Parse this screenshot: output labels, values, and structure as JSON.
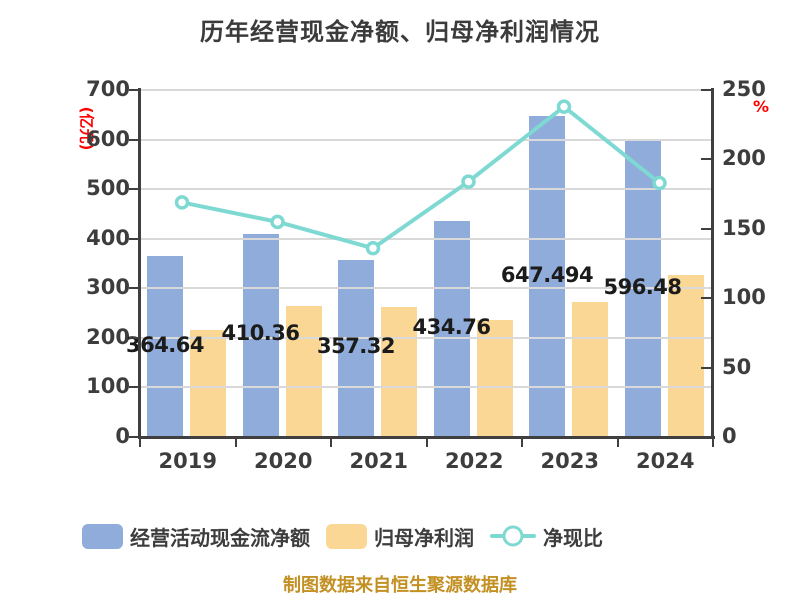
{
  "title": "历年经营现金净额、归母净利润情况",
  "source_note": "制图数据来自恒生聚源数据库",
  "colors": {
    "cash_bar": "#8FACDB",
    "profit_bar": "#FAD794",
    "ratio_line": "#7FD9D3",
    "marker_fill": "#FFFFFF",
    "axis": "#3F3F3F",
    "grid": "#D9D9D9",
    "title_text": "#3B3B3B",
    "bar_label_text": "#1B1B1B",
    "axis_unit_text": "#FF0000",
    "source_note_text": "#C39023"
  },
  "chart_data": {
    "type": "combo",
    "categories": [
      "2019",
      "2020",
      "2021",
      "2022",
      "2023",
      "2024"
    ],
    "series": [
      {
        "name": "经营活动现金流净额",
        "type": "bar",
        "axis": "left",
        "color": "#8FACDB",
        "values": [
          364.64,
          410.36,
          357.32,
          434.76,
          647.494,
          596.48
        ],
        "labels": [
          "364.64",
          "410.36",
          "357.32",
          "434.76",
          "647.494",
          "596.48"
        ]
      },
      {
        "name": "归母净利润",
        "type": "bar",
        "axis": "left",
        "color": "#FAD794",
        "values": [
          215,
          265,
          263,
          236,
          272,
          326
        ]
      },
      {
        "name": "净现比",
        "type": "line",
        "axis": "right",
        "color": "#7FD9D3",
        "values": [
          169,
          155,
          136,
          184,
          238,
          183
        ]
      }
    ],
    "left_axis": {
      "label": "(亿元)",
      "min": 0,
      "max": 700,
      "step": 100
    },
    "right_axis": {
      "label": "%",
      "min": 0,
      "max": 250,
      "step": 50
    },
    "grid": "horizontal",
    "legend_position": "bottom"
  }
}
